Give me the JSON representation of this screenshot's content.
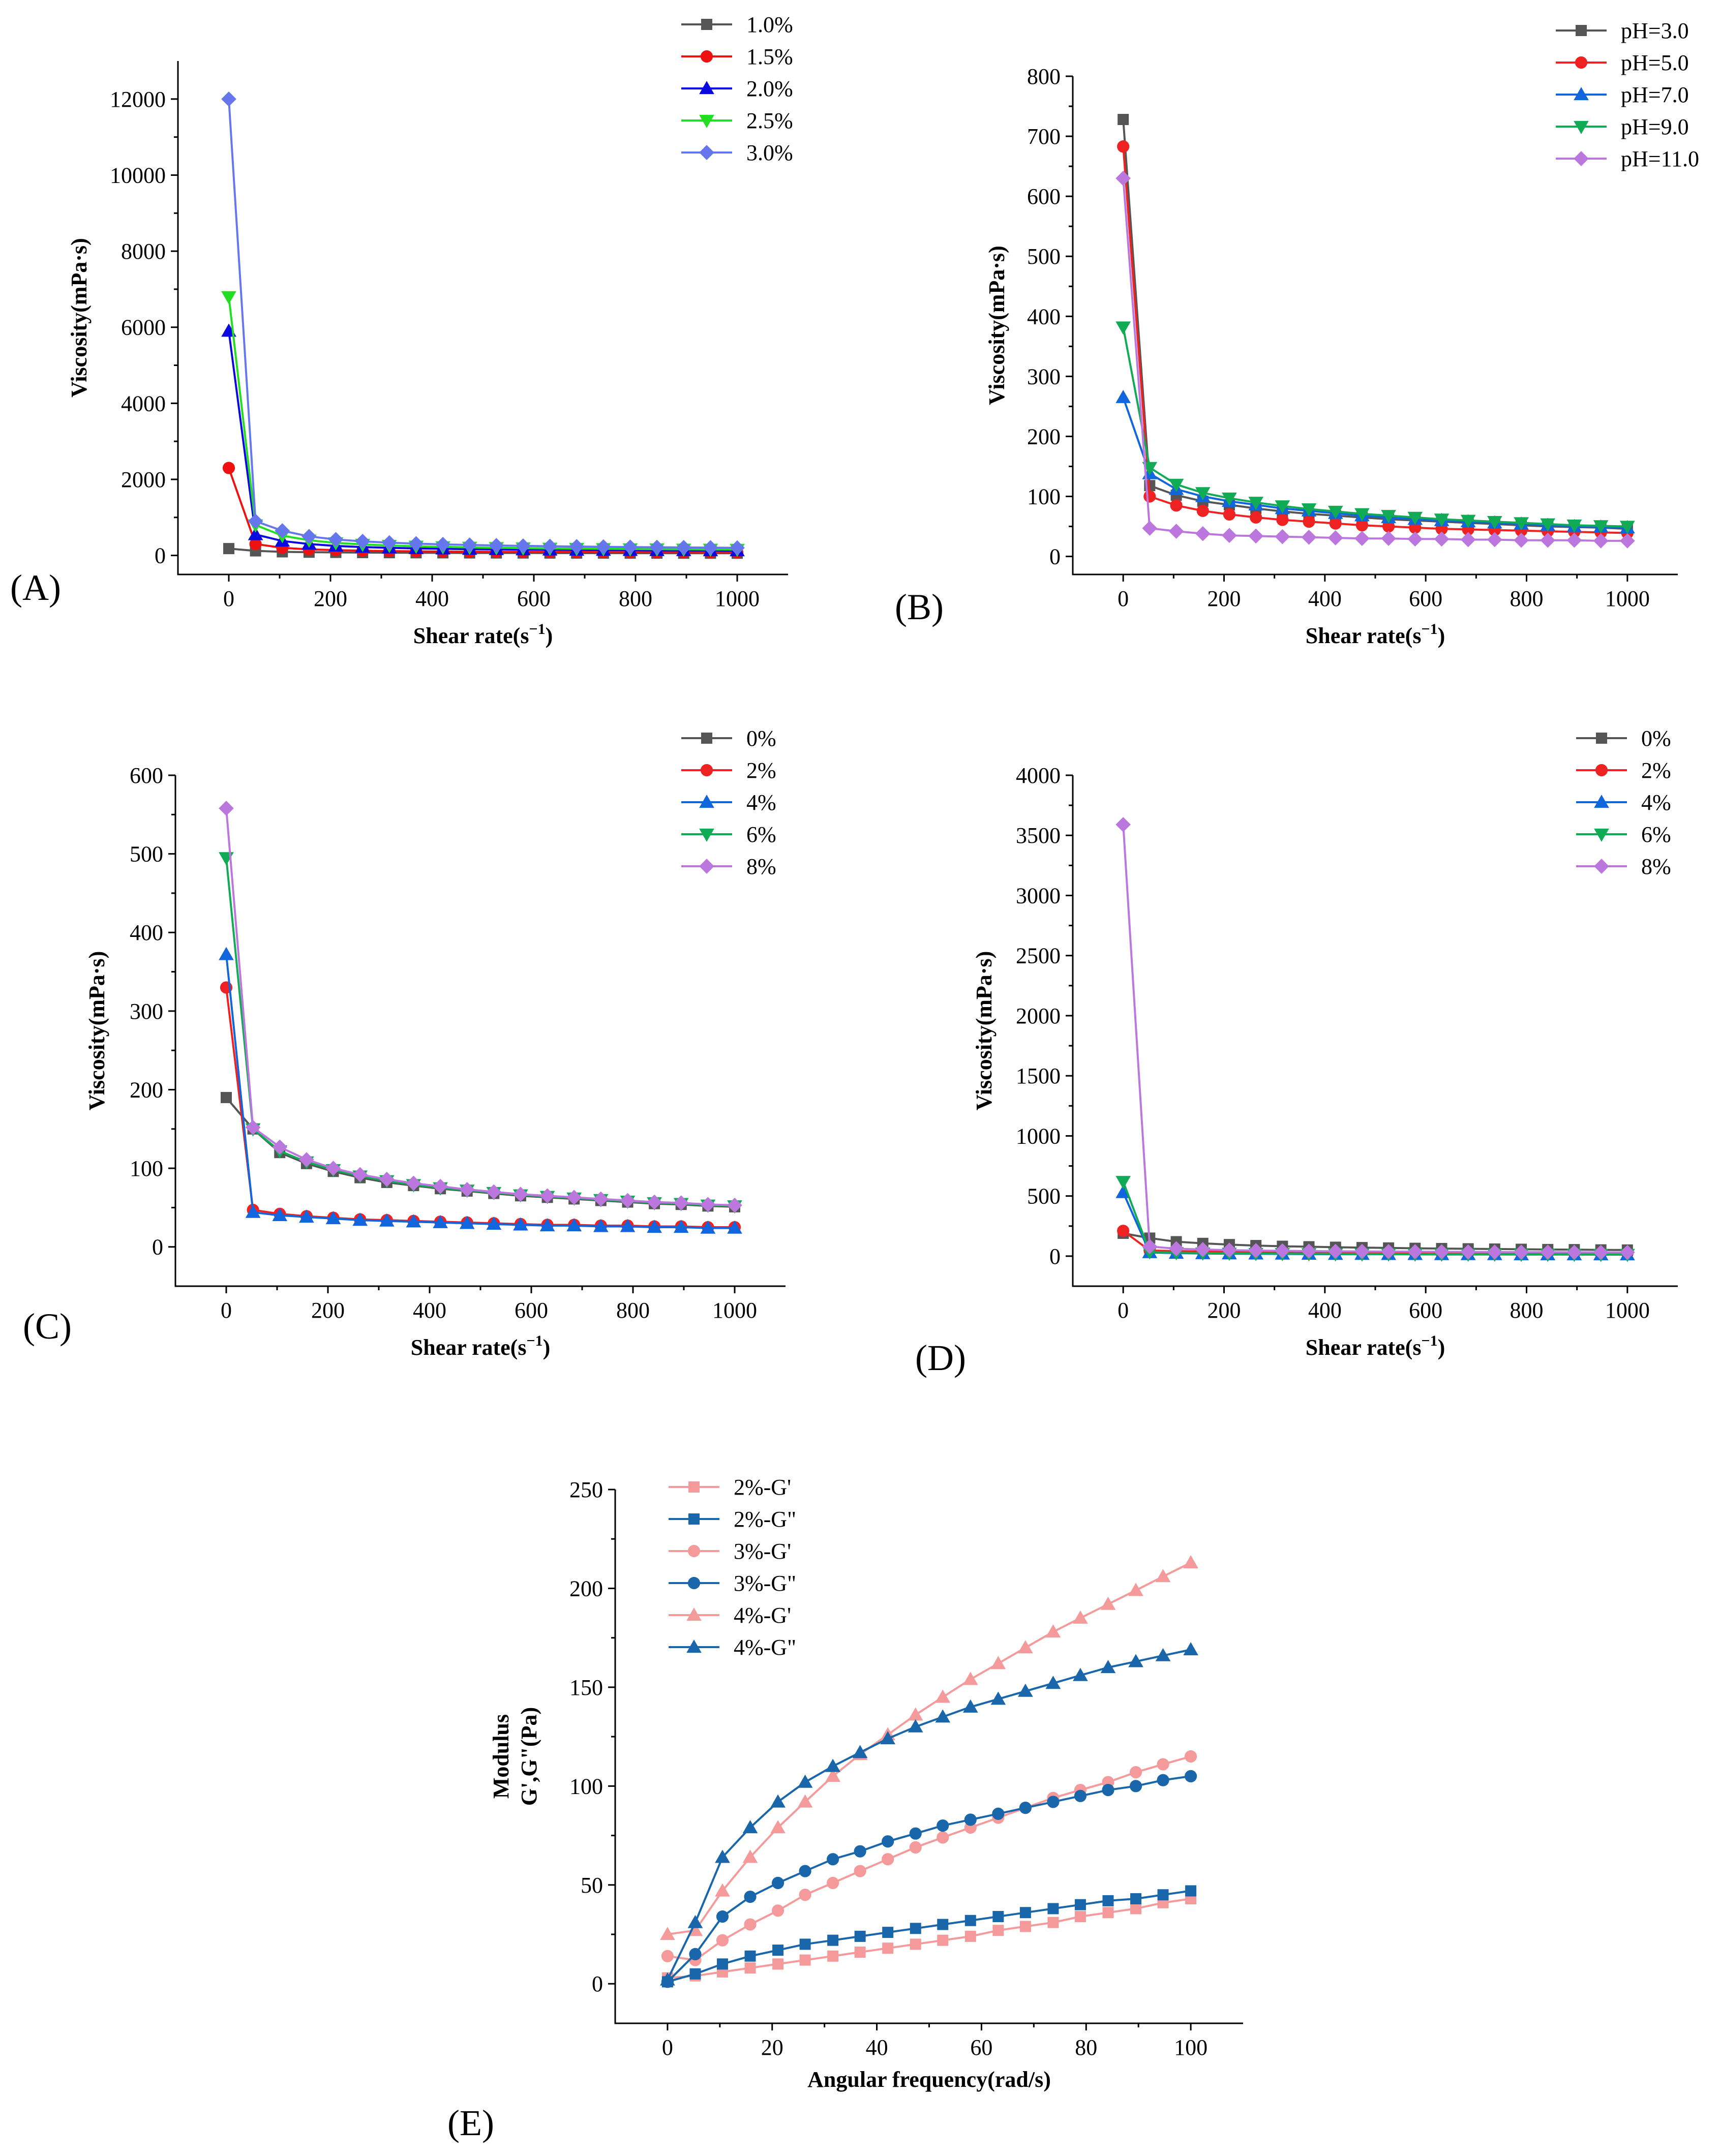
{
  "chart_data": [
    {
      "id": "A",
      "type": "line",
      "panel_label": "(A)",
      "xlabel": "Shear rate(s",
      "xlabel_sup": "−1",
      "xlabel_end": ")",
      "ylabel": "Viscosity(mPa·s)",
      "xlim": [
        -100,
        1100
      ],
      "ylim": [
        -500,
        13000
      ],
      "xticks": [
        0,
        200,
        400,
        600,
        800,
        1000
      ],
      "yticks": [
        0,
        2000,
        4000,
        6000,
        8000,
        10000,
        12000
      ],
      "x": [
        0,
        52.6,
        105.3,
        157.9,
        210.5,
        263.2,
        315.8,
        368.4,
        421.1,
        473.7,
        526.3,
        578.9,
        631.6,
        684.2,
        736.8,
        789.5,
        842.1,
        894.7,
        947.4,
        1000
      ],
      "series": [
        {
          "name": "1.0%",
          "color": "#555555",
          "marker": "square",
          "values": [
            180,
            120,
            95,
            85,
            80,
            75,
            72,
            70,
            68,
            66,
            65,
            64,
            63,
            62,
            61,
            60,
            60,
            59,
            59,
            58
          ]
        },
        {
          "name": "1.5%",
          "color": "#ee1111",
          "marker": "circle",
          "values": [
            2300,
            300,
            200,
            160,
            140,
            125,
            115,
            108,
            102,
            98,
            95,
            92,
            90,
            88,
            86,
            85,
            84,
            83,
            82,
            81
          ]
        },
        {
          "name": "2.0%",
          "color": "#0a0ae0",
          "marker": "triangle",
          "values": [
            5900,
            550,
            380,
            300,
            250,
            220,
            200,
            185,
            175,
            165,
            158,
            152,
            147,
            143,
            140,
            137,
            134,
            131,
            129,
            127
          ]
        },
        {
          "name": "2.5%",
          "color": "#22dd22",
          "marker": "tri-down",
          "values": [
            6800,
            800,
            520,
            400,
            330,
            290,
            260,
            240,
            225,
            212,
            202,
            193,
            186,
            180,
            175,
            170,
            166,
            162,
            159,
            156
          ]
        },
        {
          "name": "3.0%",
          "color": "#6677ee",
          "marker": "diamond",
          "values": [
            12000,
            900,
            650,
            500,
            420,
            370,
            335,
            310,
            290,
            275,
            262,
            251,
            242,
            234,
            227,
            221,
            215,
            210,
            205,
            200
          ]
        }
      ]
    },
    {
      "id": "B",
      "type": "line",
      "panel_label": "(B)",
      "xlabel": "Shear rate(s",
      "xlabel_sup": "−1",
      "xlabel_end": ")",
      "ylabel": "Viscosity(mPa·s)",
      "xlim": [
        -100,
        1100
      ],
      "ylim": [
        -30,
        800
      ],
      "xticks": [
        0,
        200,
        400,
        600,
        800,
        1000
      ],
      "yticks": [
        0,
        100,
        200,
        300,
        400,
        500,
        600,
        700,
        800
      ],
      "x": [
        0,
        52.6,
        105.3,
        157.9,
        210.5,
        263.2,
        315.8,
        368.4,
        421.1,
        473.7,
        526.3,
        578.9,
        631.6,
        684.2,
        736.8,
        789.5,
        842.1,
        894.7,
        947.4,
        1000
      ],
      "series": [
        {
          "name": "pH=3.0",
          "color": "#555555",
          "marker": "square",
          "values": [
            728,
            118,
            102,
            92,
            86,
            80,
            75,
            71,
            68,
            65,
            62,
            60,
            58,
            56,
            54,
            52,
            50,
            49,
            48,
            46
          ]
        },
        {
          "name": "pH=5.0",
          "color": "#ee2222",
          "marker": "circle",
          "values": [
            683,
            100,
            85,
            76,
            70,
            65,
            61,
            58,
            55,
            52,
            50,
            48,
            46,
            45,
            44,
            43,
            42,
            41,
            40,
            39
          ]
        },
        {
          "name": "pH=7.0",
          "color": "#1166dd",
          "marker": "triangle",
          "values": [
            265,
            138,
            112,
            100,
            92,
            86,
            80,
            76,
            72,
            68,
            65,
            62,
            60,
            58,
            56,
            54,
            52,
            50,
            49,
            48
          ]
        },
        {
          "name": "pH=9.0",
          "color": "#11aa55",
          "marker": "tri-down",
          "values": [
            382,
            148,
            120,
            106,
            97,
            90,
            84,
            79,
            75,
            71,
            68,
            65,
            62,
            60,
            58,
            56,
            54,
            52,
            51,
            50
          ]
        },
        {
          "name": "pH=11.0",
          "color": "#bb77dd",
          "marker": "diamond",
          "values": [
            630,
            47,
            42,
            38,
            35,
            34,
            33,
            32,
            31,
            30,
            30,
            29,
            29,
            28,
            28,
            27,
            27,
            27,
            26,
            26
          ]
        }
      ]
    },
    {
      "id": "C",
      "type": "line",
      "panel_label": "(C)",
      "xlabel": "Shear rate(s",
      "xlabel_sup": "−1",
      "xlabel_end": ")",
      "ylabel": "Viscosity(mPa·s)",
      "xlim": [
        -100,
        1100
      ],
      "ylim": [
        -50,
        600
      ],
      "xticks": [
        0,
        200,
        400,
        600,
        800,
        1000
      ],
      "yticks": [
        0,
        100,
        200,
        300,
        400,
        500,
        600
      ],
      "x": [
        0,
        52.6,
        105.3,
        157.9,
        210.5,
        263.2,
        315.8,
        368.4,
        421.1,
        473.7,
        526.3,
        578.9,
        631.6,
        684.2,
        736.8,
        789.5,
        842.1,
        894.7,
        947.4,
        1000
      ],
      "series": [
        {
          "name": "0%",
          "color": "#555555",
          "marker": "square",
          "values": [
            190,
            150,
            120,
            106,
            96,
            88,
            82,
            78,
            74,
            71,
            68,
            65,
            63,
            61,
            59,
            57,
            55,
            54,
            52,
            51
          ]
        },
        {
          "name": "2%",
          "color": "#ee2222",
          "marker": "circle",
          "values": [
            330,
            47,
            42,
            39,
            37,
            35,
            34,
            33,
            32,
            31,
            30,
            29,
            28,
            28,
            27,
            27,
            26,
            26,
            25,
            25
          ]
        },
        {
          "name": "4%",
          "color": "#1166dd",
          "marker": "triangle",
          "values": [
            372,
            44,
            40,
            38,
            36,
            34,
            33,
            32,
            31,
            30,
            29,
            28,
            27,
            27,
            26,
            26,
            25,
            25,
            24,
            24
          ]
        },
        {
          "name": "6%",
          "color": "#11aa55",
          "marker": "tri-down",
          "values": [
            495,
            150,
            122,
            108,
            98,
            90,
            84,
            79,
            75,
            72,
            69,
            66,
            64,
            62,
            60,
            58,
            56,
            55,
            53,
            52
          ]
        },
        {
          "name": "8%",
          "color": "#bb77dd",
          "marker": "diamond",
          "values": [
            558,
            152,
            127,
            111,
            100,
            92,
            86,
            81,
            77,
            73,
            70,
            67,
            65,
            63,
            61,
            59,
            57,
            56,
            54,
            53
          ]
        }
      ]
    },
    {
      "id": "D",
      "type": "line",
      "panel_label": "(D)",
      "xlabel": "Shear rate(s",
      "xlabel_sup": "−1",
      "xlabel_end": ")",
      "ylabel": "Viscosity(mPa·s)",
      "xlim": [
        -100,
        1100
      ],
      "ylim": [
        -250,
        4000
      ],
      "xticks": [
        0,
        200,
        400,
        600,
        800,
        1000
      ],
      "yticks": [
        0,
        500,
        1000,
        1500,
        2000,
        2500,
        3000,
        3500,
        4000
      ],
      "x": [
        0,
        52.6,
        105.3,
        157.9,
        210.5,
        263.2,
        315.8,
        368.4,
        421.1,
        473.7,
        526.3,
        578.9,
        631.6,
        684.2,
        736.8,
        789.5,
        842.1,
        894.7,
        947.4,
        1000
      ],
      "series": [
        {
          "name": "0%",
          "color": "#555555",
          "marker": "square",
          "values": [
            190,
            150,
            120,
            106,
            96,
            88,
            82,
            78,
            74,
            71,
            68,
            65,
            63,
            61,
            59,
            57,
            55,
            54,
            52,
            51
          ]
        },
        {
          "name": "2%",
          "color": "#ee2222",
          "marker": "circle",
          "values": [
            210,
            47,
            42,
            39,
            37,
            35,
            34,
            33,
            32,
            31,
            30,
            29,
            28,
            28,
            27,
            27,
            26,
            26,
            25,
            25
          ]
        },
        {
          "name": "4%",
          "color": "#1166dd",
          "marker": "triangle",
          "values": [
            530,
            30,
            25,
            22,
            20,
            19,
            18,
            17,
            16,
            16,
            15,
            15,
            14,
            14,
            14,
            13,
            13,
            13,
            12,
            12
          ]
        },
        {
          "name": "6%",
          "color": "#11aa55",
          "marker": "tri-down",
          "values": [
            620,
            35,
            28,
            25,
            23,
            21,
            20,
            19,
            18,
            17,
            17,
            16,
            16,
            15,
            15,
            14,
            14,
            14,
            13,
            13
          ]
        },
        {
          "name": "8%",
          "color": "#bb77dd",
          "marker": "diamond",
          "values": [
            3590,
            80,
            62,
            55,
            50,
            46,
            44,
            42,
            40,
            39,
            38,
            37,
            36,
            35,
            34,
            33,
            33,
            32,
            31,
            31
          ]
        }
      ]
    },
    {
      "id": "E",
      "type": "line",
      "panel_label": "(E)",
      "xlabel": "Angular frequency(rad/s)",
      "xlabel_sup": "",
      "xlabel_end": "",
      "ylabel": "Modulus",
      "ylabel2": "G',G\"(Pa)",
      "xlim": [
        -10,
        110
      ],
      "ylim": [
        -20,
        250
      ],
      "xticks": [
        0,
        20,
        40,
        60,
        80,
        100
      ],
      "yticks": [
        0,
        50,
        100,
        150,
        200,
        250
      ],
      "x": [
        0,
        5.3,
        10.5,
        15.8,
        21.1,
        26.3,
        31.6,
        36.8,
        42.1,
        47.4,
        52.6,
        57.9,
        63.2,
        68.4,
        73.7,
        78.9,
        84.2,
        89.5,
        94.7,
        100
      ],
      "series": [
        {
          "name": "2%-G'",
          "color": "#f59a9a",
          "marker": "square",
          "values": [
            3,
            4,
            6,
            8,
            10,
            12,
            14,
            16,
            18,
            20,
            22,
            24,
            27,
            29,
            31,
            34,
            36,
            38,
            41,
            43
          ]
        },
        {
          "name": "2%-G\"",
          "color": "#1a66aa",
          "marker": "square",
          "values": [
            1,
            5,
            10,
            14,
            17,
            20,
            22,
            24,
            26,
            28,
            30,
            32,
            34,
            36,
            38,
            40,
            42,
            43,
            45,
            47
          ]
        },
        {
          "name": "3%-G'",
          "color": "#f59a9a",
          "marker": "circle",
          "values": [
            14,
            12,
            22,
            30,
            37,
            45,
            51,
            57,
            63,
            69,
            74,
            79,
            84,
            89,
            94,
            98,
            102,
            107,
            111,
            115
          ]
        },
        {
          "name": "3%-G\"",
          "color": "#1a66aa",
          "marker": "circle",
          "values": [
            1,
            15,
            34,
            44,
            51,
            57,
            63,
            67,
            72,
            76,
            80,
            83,
            86,
            89,
            92,
            95,
            98,
            100,
            103,
            105
          ]
        },
        {
          "name": "4%-G'",
          "color": "#f59a9a",
          "marker": "triangle",
          "values": [
            25,
            27,
            47,
            64,
            79,
            92,
            105,
            116,
            126,
            136,
            145,
            154,
            162,
            170,
            178,
            185,
            192,
            199,
            206,
            213
          ]
        },
        {
          "name": "4%-G\"",
          "color": "#1a66aa",
          "marker": "triangle",
          "values": [
            2,
            31,
            64,
            79,
            92,
            102,
            110,
            117,
            124,
            130,
            135,
            140,
            144,
            148,
            152,
            156,
            160,
            163,
            166,
            169
          ]
        }
      ]
    }
  ]
}
